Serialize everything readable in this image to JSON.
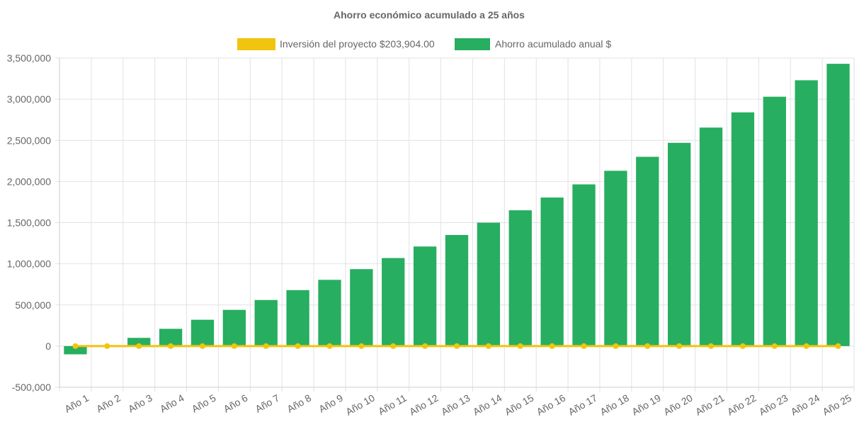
{
  "chart_data": {
    "type": "bar",
    "title": "Ahorro económico acumulado a 25 años",
    "categories": [
      "Año 1",
      "Año 2",
      "Año 3",
      "Año 4",
      "Año 5",
      "Año 6",
      "Año 7",
      "Año 8",
      "Año 9",
      "Año 10",
      "Año 11",
      "Año 12",
      "Año 13",
      "Año 14",
      "Año 15",
      "Año 16",
      "Año 17",
      "Año 18",
      "Año 19",
      "Año 20",
      "Año 21",
      "Año 22",
      "Año 23",
      "Año 24",
      "Año 25"
    ],
    "series": [
      {
        "name": "Inversión del proyecto $203,904.00",
        "type": "line",
        "color": "#f1c40f",
        "values": [
          0,
          0,
          0,
          0,
          0,
          0,
          0,
          0,
          0,
          0,
          0,
          0,
          0,
          0,
          0,
          0,
          0,
          0,
          0,
          0,
          0,
          0,
          0,
          0,
          0
        ]
      },
      {
        "name": "Ahorro acumulado anual $",
        "type": "bar",
        "color": "#27ae60",
        "values": [
          -100000,
          0,
          100000,
          210000,
          320000,
          440000,
          560000,
          680000,
          805000,
          935000,
          1070000,
          1210000,
          1350000,
          1500000,
          1650000,
          1805000,
          1965000,
          2130000,
          2300000,
          2470000,
          2655000,
          2840000,
          3030000,
          3230000,
          3430000
        ]
      }
    ],
    "ylim": [
      -500000,
      3500000
    ],
    "yticks": [
      {
        "value": -500000,
        "label": "-500,000"
      },
      {
        "value": 0,
        "label": "0"
      },
      {
        "value": 500000,
        "label": "500,000"
      },
      {
        "value": 1000000,
        "label": "1,000,000"
      },
      {
        "value": 1500000,
        "label": "1,500,000"
      },
      {
        "value": 2000000,
        "label": "2,000,000"
      },
      {
        "value": 2500000,
        "label": "2,500,000"
      },
      {
        "value": 3000000,
        "label": "3,000,000"
      },
      {
        "value": 3500000,
        "label": "3,500,000"
      }
    ],
    "xlabel": "",
    "ylabel": "",
    "grid": true,
    "legend_position": "top-center"
  }
}
